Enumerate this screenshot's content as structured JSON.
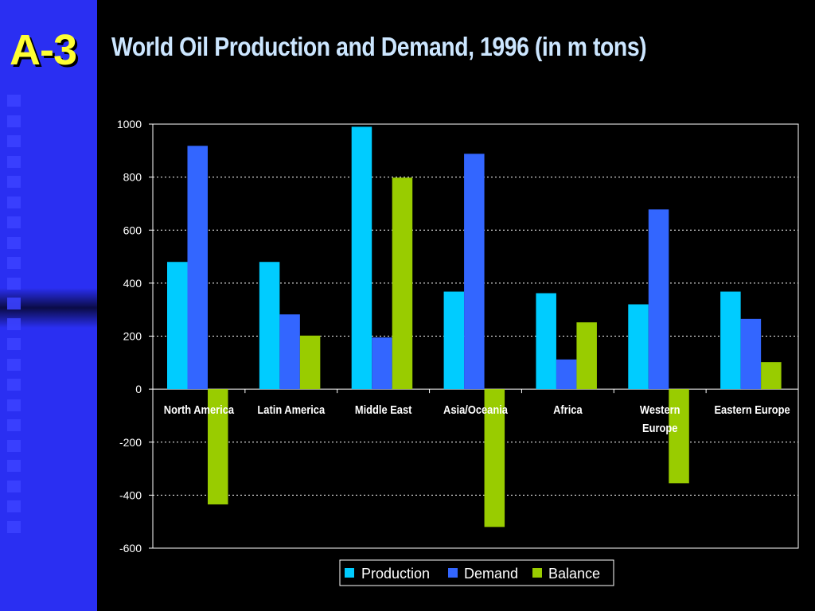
{
  "slide": {
    "badge": "A-3",
    "title": "World Oil Production and Demand, 1996 (in m tons)"
  },
  "colors": {
    "background": "#000000",
    "sidebar": "#2a2ff2",
    "badge": "#ffff33",
    "title": "#cce6ff"
  },
  "chart_data": {
    "type": "bar",
    "title": "",
    "xlabel": "",
    "ylabel": "",
    "ylim": [
      -600,
      1000
    ],
    "yticks": [
      "1000",
      "800",
      "600",
      "400",
      "200",
      "0",
      "-200",
      "-400",
      "-600"
    ],
    "grid": true,
    "legend_position": "bottom",
    "categories": [
      "North America",
      "Latin America",
      "Middle East",
      "Asia/Oceania",
      "Africa",
      [
        "Western",
        "Europe"
      ],
      "Eastern Europe"
    ],
    "series": [
      {
        "name": "Production",
        "color": "#00ccff",
        "values": [
          480,
          480,
          990,
          368,
          362,
          320,
          368
        ]
      },
      {
        "name": "Demand",
        "color": "#3366ff",
        "values": [
          918,
          282,
          195,
          888,
          112,
          678,
          265
        ]
      },
      {
        "name": "Balance",
        "color": "#99cc00",
        "values": [
          -435,
          202,
          798,
          -520,
          252,
          -355,
          102
        ]
      }
    ]
  }
}
